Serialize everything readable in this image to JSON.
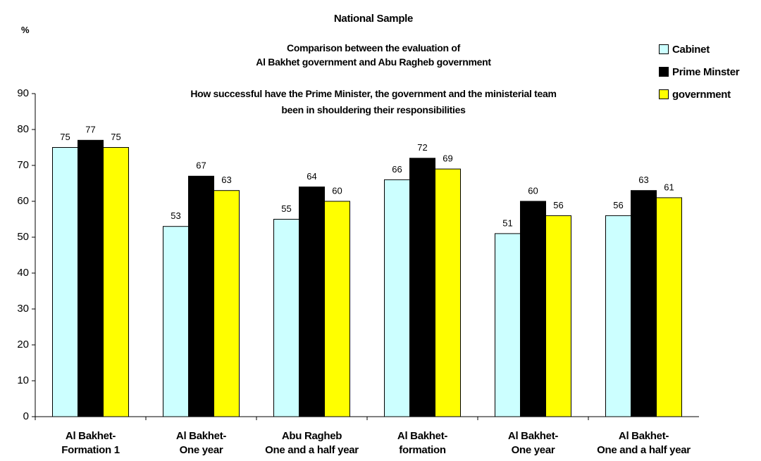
{
  "chart_data": {
    "type": "bar",
    "title": "National Sample",
    "subtitle": "Comparison between the evaluation of\nAl Bakhet government and Abu Ragheb government",
    "question": "How successful have the Prime Minister, the government and the ministerial team\nbeen in shouldering their responsibilities",
    "y_label": "%",
    "categories": [
      "Al Bakhet-\nFormation 1",
      "Al Bakhet-\nOne year",
      "Abu Ragheb\nOne and a half year",
      "Al Bakhet-\nformation",
      "Al Bakhet-\nOne year",
      "Al Bakhet-\nOne and a half year"
    ],
    "series": [
      {
        "name": "Cabinet",
        "color": "#ccffff",
        "values": [
          75,
          53,
          55,
          66,
          51,
          56
        ]
      },
      {
        "name": "Prime Minster",
        "color": "#000000",
        "values": [
          77,
          67,
          64,
          72,
          60,
          63
        ]
      },
      {
        "name": "government",
        "color": "#ffff00",
        "values": [
          75,
          63,
          60,
          69,
          56,
          61
        ]
      }
    ],
    "ylim": [
      0,
      90
    ],
    "yticks": [
      0,
      10,
      20,
      30,
      40,
      50,
      60,
      70,
      80,
      90
    ],
    "legend": "top-right"
  }
}
